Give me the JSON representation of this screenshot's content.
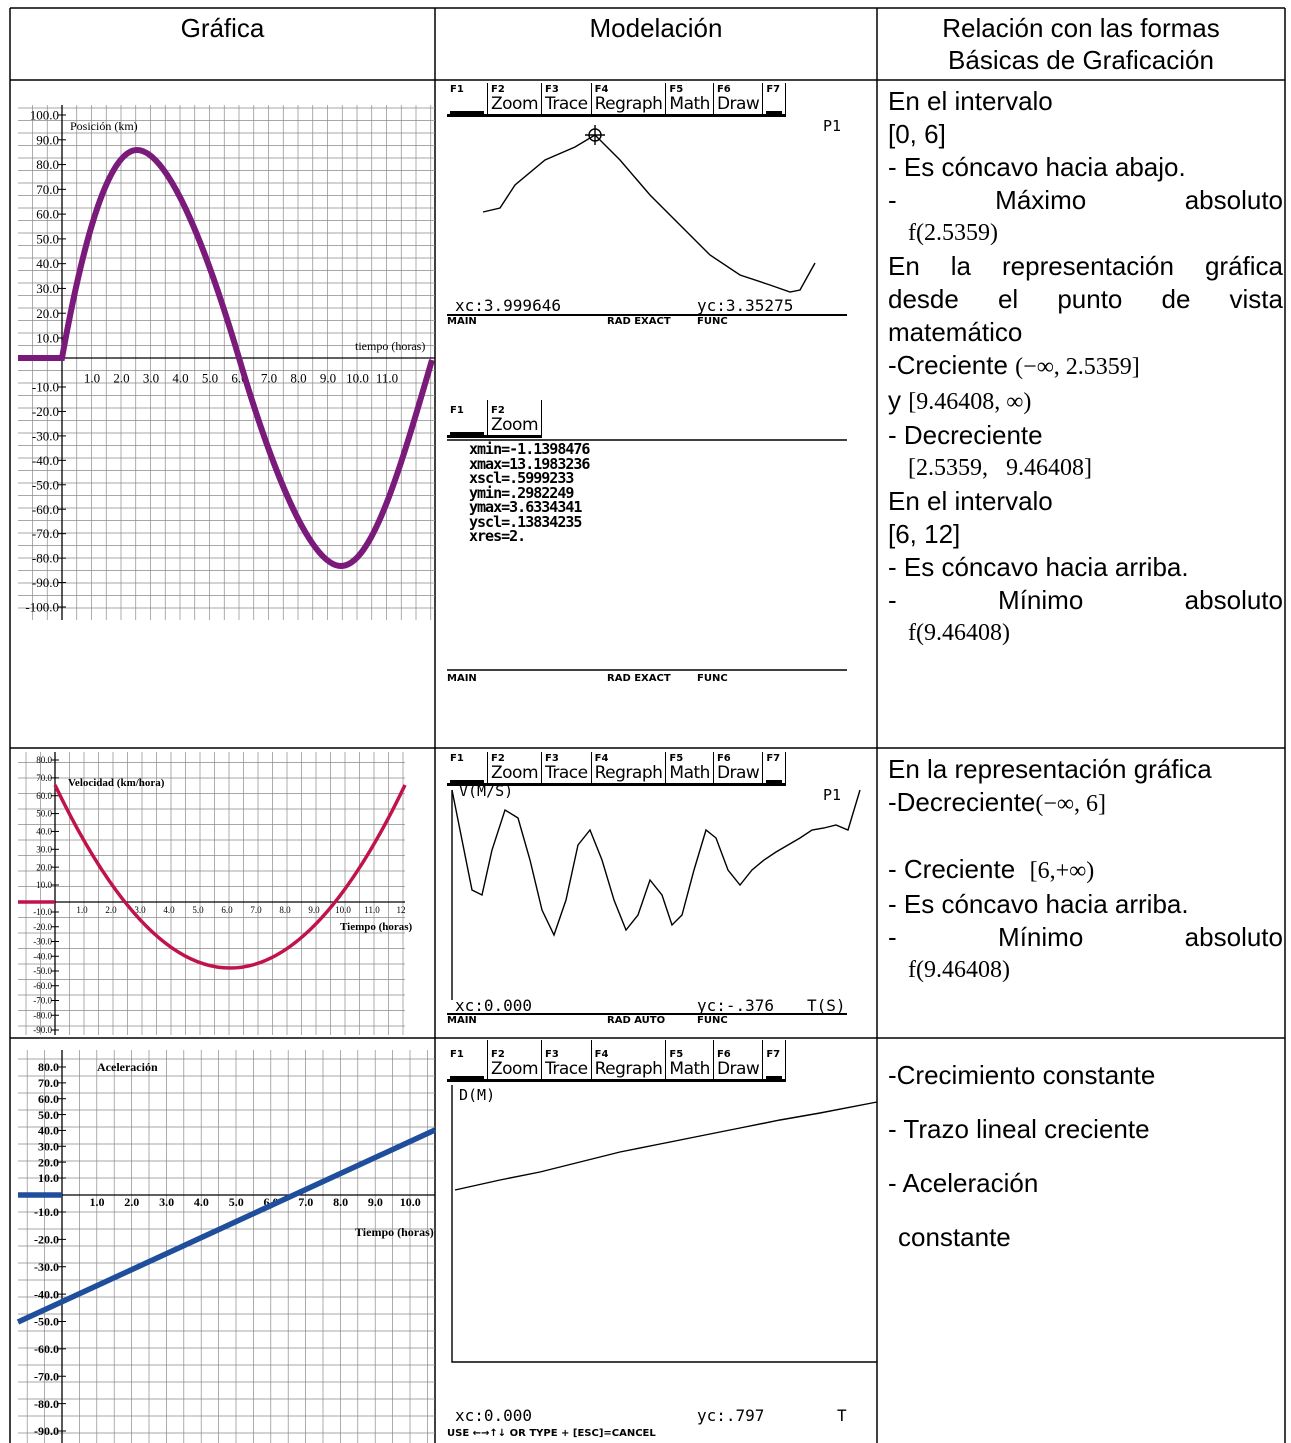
{
  "table": {
    "headers": [
      "Gráfica",
      "Modelación",
      [
        "Relación con las formas",
        "Básicas de Graficación"
      ]
    ],
    "rows": [
      {
        "graph": {
          "y_label": "Posición (km)",
          "x_label": "tiempo (horas)",
          "yticks": [
            "100.0",
            "90.0",
            "80.0",
            "70.0",
            "60.0",
            "50.0",
            "40.0",
            "30.0",
            "20.0",
            "10.0",
            "-10.0",
            "-20.0",
            "-30.0",
            "-40.0",
            "-50.0",
            "-60.0",
            "-70.0",
            "-80.0",
            "-90.0",
            "-100.0"
          ],
          "xticks": [
            "1.0",
            "2.0",
            "3.0",
            "4.0",
            "5.0",
            "6.0",
            "7.0",
            "8.0",
            "9.0",
            "10.0",
            "11.0"
          ]
        },
        "screens": [
          {
            "tabs": [
              {
                "key": "F1"
              },
              {
                "key": "F2",
                "label": "Zoom"
              },
              {
                "key": "F3",
                "label": "Trace"
              },
              {
                "key": "F4",
                "label": "Regraph"
              },
              {
                "key": "F5",
                "label": "Math"
              },
              {
                "key": "F6",
                "label": "Draw"
              },
              {
                "key": "F7"
              }
            ],
            "corner": "P1",
            "status": [
              "xc:3.999646",
              "yc:3.35275"
            ],
            "footer": [
              "MAIN",
              "RAD EXACT",
              "FUNC"
            ]
          },
          {
            "tabs": [
              {
                "key": "F1"
              },
              {
                "key": "F2",
                "label": "Zoom"
              }
            ],
            "lines": [
              "xmin=-1.1398476",
              "xmax=13.1983236",
              "xscl=.5999233",
              "ymin=.2982249",
              "ymax=3.6334341",
              "yscl=.13834235",
              "xres=2."
            ],
            "footer": [
              "MAIN",
              "RAD EXACT",
              "FUNC"
            ]
          }
        ],
        "notes": [
          "En el intervalo",
          "[0, 6]",
          "- Es cóncavo hacia abajo.",
          "- Máximo absoluto",
          "f(2.5359)",
          "En la representación gráfica desde el punto de vista matemático",
          {
            "text": "-Creciente",
            "math": "(−∞, 2.5359]"
          },
          {
            "text": "y",
            "math": "[9.46408, ∞)"
          },
          "- Decreciente",
          "[2.5359,   9.46408]",
          "En el intervalo",
          "[6, 12]",
          "- Es cóncavo hacia arriba.",
          "- Mínimo absoluto",
          "f(9.46408)"
        ]
      },
      {
        "graph": {
          "y_label": "Velocidad (km/hora)",
          "x_label": "Tiempo (horas)",
          "yticks": [
            "80.0",
            "70.0",
            "60.0",
            "50.0",
            "40.0",
            "30.0",
            "20.0",
            "10.0",
            "-10.0",
            "-20.0",
            "-30.0",
            "-40.0",
            "-50.0",
            "-60.0",
            "-70.0",
            "-80.0",
            "-90.0"
          ],
          "xticks": [
            "1.0",
            "2.0",
            "3.0",
            "4.0",
            "5.0",
            "6.0",
            "7.0",
            "8.0",
            "9.0",
            "10.0",
            "11.0",
            "12"
          ]
        },
        "screens": [
          {
            "tabs": [
              {
                "key": "F1"
              },
              {
                "key": "F2",
                "label": "Zoom"
              },
              {
                "key": "F3",
                "label": "Trace"
              },
              {
                "key": "F4",
                "label": "Regraph"
              },
              {
                "key": "F5",
                "label": "Math"
              },
              {
                "key": "F6",
                "label": "Draw"
              },
              {
                "key": "F7"
              }
            ],
            "y_label": "V(M/S)",
            "corner": "P1",
            "status": [
              "xc:0.000",
              "yc:-.376",
              "T(S)"
            ],
            "footer": [
              "MAIN",
              "RAD AUTO",
              "FUNC"
            ]
          }
        ],
        "notes": [
          "En la representación gráfica",
          {
            "text": "-Decreciente",
            "math": "(−∞, 6]"
          },
          {
            "text": "- Creciente",
            "math": "[6,+∞)"
          },
          "- Es cóncavo hacia arriba.",
          "- Mínimo absoluto",
          "f(9.46408)"
        ]
      },
      {
        "graph": {
          "y_label": "Aceleración",
          "x_label": "Tiempo (horas)",
          "yticks": [
            "80.0",
            "70.0",
            "60.0",
            "50.0",
            "40.0",
            "30.0",
            "20.0",
            "10.0",
            "-10.0",
            "-20.0",
            "-30.0",
            "-40.0",
            "-50.0",
            "-60.0",
            "-70.0",
            "-80.0",
            "-90.0"
          ],
          "xticks": [
            "1.0",
            "2.0",
            "3.0",
            "4.0",
            "5.0",
            "6.0",
            "7.0",
            "8.0",
            "9.0",
            "10.0"
          ]
        },
        "screens": [
          {
            "tabs": [
              {
                "key": "F1"
              },
              {
                "key": "F2",
                "label": "Zoom"
              },
              {
                "key": "F3",
                "label": "Trace"
              },
              {
                "key": "F4",
                "label": "Regraph"
              },
              {
                "key": "F5",
                "label": "Math"
              },
              {
                "key": "F6",
                "label": "Draw"
              },
              {
                "key": "F7"
              }
            ],
            "y_label": "D(M)",
            "status": [
              "xc:0.000",
              "yc:.797",
              "T"
            ],
            "footer": [
              "USE ←→↑↓ OR TYPE + [ESC]=CANCEL"
            ]
          }
        ],
        "notes": [
          "-Crecimiento constante",
          "- Trazo lineal creciente",
          "- Aceleración",
          "constante"
        ]
      }
    ]
  }
}
